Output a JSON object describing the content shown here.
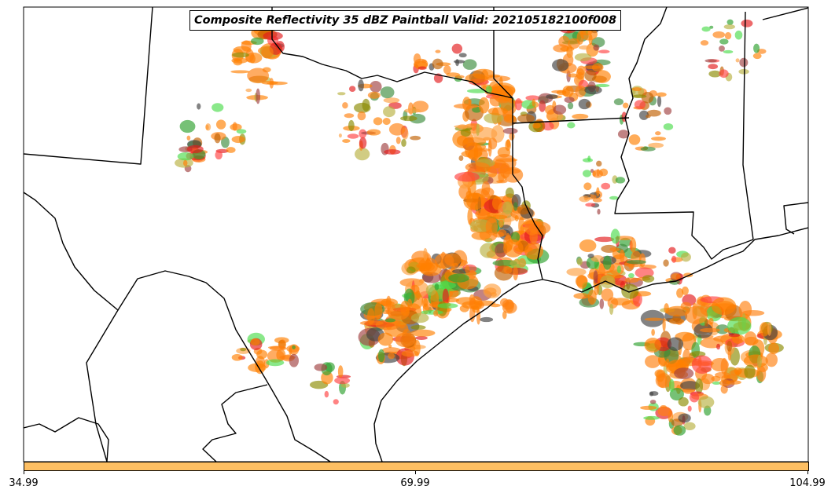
{
  "title": "Composite Reflectivity 35 dBZ Paintball Valid: 202105182100f008",
  "colorbar": {
    "color": "#fdbf63",
    "ticks": [
      "34.99",
      "69.99",
      "104.99"
    ]
  },
  "member_colors": [
    "#ff8000",
    "#ff7f0e",
    "#e41a1c",
    "#ff4040",
    "#2ca02c",
    "#4cdc4c",
    "#8b8b00",
    "#a04040",
    "#fda040",
    "#b8b040",
    "#404040",
    "#3c8c3c",
    "#c06000"
  ]
}
